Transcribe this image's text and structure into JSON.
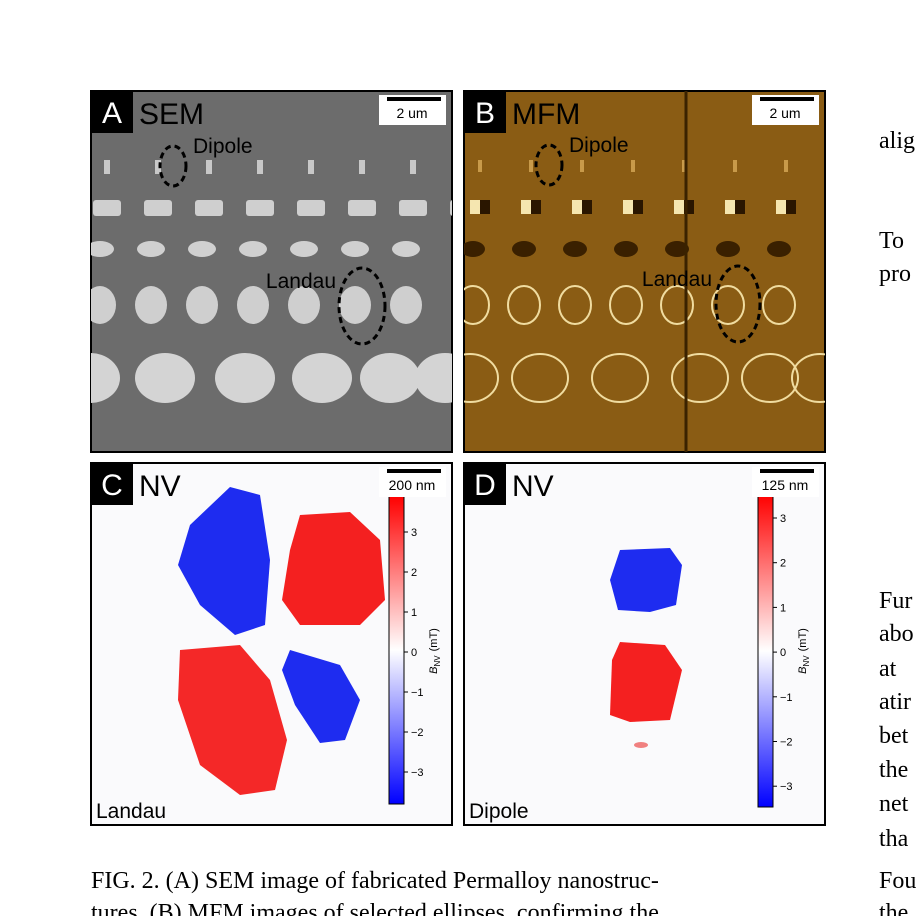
{
  "figure": {
    "panels": [
      {
        "letter": "A",
        "title": "SEM",
        "scale_bar": "2 um",
        "annotations": [
          "Dipole",
          "Landau"
        ]
      },
      {
        "letter": "B",
        "title": "MFM",
        "scale_bar": "2 um",
        "annotations": [
          "Dipole",
          "Landau"
        ]
      },
      {
        "letter": "C",
        "title": "NV",
        "scale_bar": "200 nm",
        "corner_label": "Landau",
        "colorbar": {
          "ticks": [
            "3",
            "2",
            "1",
            "0",
            "−1",
            "−2",
            "−3"
          ],
          "symbol": "B",
          "subscript": "NV",
          "unit": "(mT)"
        }
      },
      {
        "letter": "D",
        "title": "NV",
        "scale_bar": "125 nm",
        "corner_label": "Dipole",
        "colorbar": {
          "ticks": [
            "3",
            "2",
            "1",
            "0",
            "−1",
            "−2",
            "−3"
          ],
          "symbol": "B",
          "subscript": "NV",
          "unit": "(mT)"
        }
      }
    ],
    "caption": [
      "FIG. 2.  (A) SEM image of fabricated Permalloy nanostruc-",
      "tures.  (B) MFM images of selected ellipses, confirming the"
    ]
  },
  "side_text": [
    "alig",
    "To",
    "pro",
    "Fur",
    "abo",
    "at",
    "atir",
    "bet",
    "the",
    "net",
    "tha",
    "Fou",
    "the"
  ]
}
